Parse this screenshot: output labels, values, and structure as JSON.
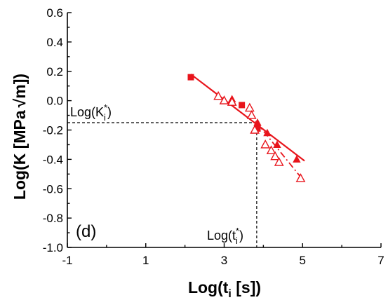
{
  "chart_data": {
    "type": "scatter",
    "xlabel_main": "Log(t",
    "xlabel_sub": "i",
    "xlabel_tail": " [s])",
    "ylabel_main": "Log(K [MPa",
    "ylabel_sqrt": "√m",
    "ylabel_tail": "])",
    "xlim": [
      -1,
      7
    ],
    "ylim": [
      -1.0,
      0.6
    ],
    "xticks": [
      -1,
      1,
      3,
      5,
      7
    ],
    "xtick_labels": [
      "-1",
      "1",
      "3",
      "5",
      "7"
    ],
    "yticks": [
      0.6,
      0.4,
      0.2,
      0.0,
      -0.2,
      -0.4,
      -0.6,
      -0.8,
      -1.0
    ],
    "ytick_labels": [
      "0.6",
      "0.4",
      "0.2",
      "0.0",
      "-0.2",
      "-0.4",
      "-0.6",
      "-0.8",
      "-1.0"
    ],
    "panel_label": "(d)",
    "color": "#e8141b",
    "series": [
      {
        "marker": "square-filled",
        "points": [
          [
            2.15,
            0.16
          ],
          [
            3.45,
            -0.03
          ],
          [
            3.85,
            -0.19
          ]
        ]
      },
      {
        "marker": "triangle-filled",
        "points": [
          [
            3.2,
            0.01
          ],
          [
            4.1,
            -0.22
          ],
          [
            4.35,
            -0.3
          ],
          [
            4.85,
            -0.4
          ],
          [
            3.85,
            -0.15
          ]
        ]
      },
      {
        "marker": "triangle-open",
        "points": [
          [
            2.85,
            0.03
          ],
          [
            3.0,
            0.0
          ],
          [
            3.2,
            -0.01
          ],
          [
            3.65,
            -0.05
          ],
          [
            3.7,
            -0.1
          ],
          [
            3.78,
            -0.2
          ],
          [
            4.05,
            -0.3
          ],
          [
            4.2,
            -0.34
          ],
          [
            4.3,
            -0.38
          ],
          [
            4.4,
            -0.42
          ],
          [
            4.95,
            -0.53
          ]
        ]
      }
    ],
    "fit_lines": [
      {
        "style": "solid",
        "from": [
          2.15,
          0.18
        ],
        "to": [
          5.05,
          -0.41
        ]
      },
      {
        "style": "dashdot",
        "from": [
          3.8,
          -0.14
        ],
        "to": [
          4.95,
          -0.52
        ]
      }
    ],
    "guides": {
      "k_star": -0.15,
      "t_star": 3.83,
      "k_label_main": "Log(K",
      "k_label_sub": "i",
      "k_label_sup": "*",
      "k_label_tail": ")",
      "t_label_main": "Log(t",
      "t_label_sub": "i",
      "t_label_sup": "*",
      "t_label_tail": ")"
    }
  }
}
